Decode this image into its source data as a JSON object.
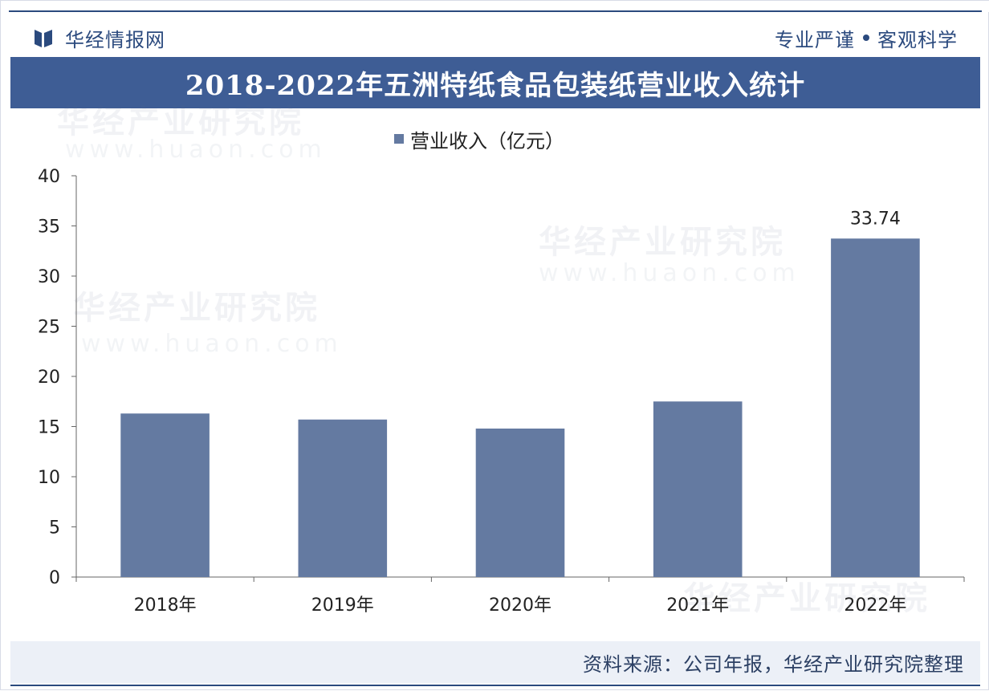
{
  "header": {
    "brand": "华经情报网",
    "slogan_left": "专业严谨",
    "slogan_right": "客观科学"
  },
  "watermark": {
    "name": "华经产业研究院",
    "url": "www.huaon.com"
  },
  "footer": {
    "source": "资料来源：公司年报，华经产业研究院整理"
  },
  "colors": {
    "accent": "#2b4a7e",
    "title_band": "#3e5d95",
    "bar": "#647aa1",
    "footer_bg": "#ecf0f7"
  },
  "chart_data": {
    "type": "bar",
    "title": "2018-2022年五洲特纸食品包装纸营业收入统计",
    "legend_position": "top-center",
    "grid": false,
    "categories": [
      "2018年",
      "2019年",
      "2020年",
      "2021年",
      "2022年"
    ],
    "series": [
      {
        "name": "营业收入（亿元）",
        "values": [
          16.3,
          15.7,
          14.8,
          17.5,
          33.74
        ],
        "data_labels": [
          "",
          "",
          "",
          "",
          "33.74"
        ]
      }
    ],
    "y_ticks": [
      "0",
      "5",
      "10",
      "15",
      "20",
      "25",
      "30",
      "35",
      "40"
    ],
    "ylim": [
      0,
      40
    ],
    "xlabel": "",
    "ylabel": ""
  }
}
